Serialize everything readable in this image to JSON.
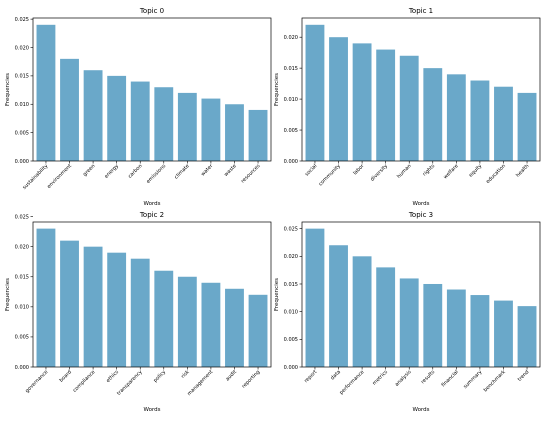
{
  "colors": {
    "bar": "#6aa8c9",
    "axis": "#000000",
    "background": "#ffffff"
  },
  "chart_data": [
    {
      "type": "bar",
      "title": "Topic 0",
      "xlabel": "Words",
      "ylabel": "Frequencies",
      "ylim": [
        0,
        0.0252
      ],
      "yticks": [
        "0.000",
        "0.005",
        "0.010",
        "0.015",
        "0.020",
        "0.025"
      ],
      "categories": [
        "sustainability",
        "environment",
        "green",
        "energy",
        "carbon",
        "emissions",
        "climate",
        "water",
        "waste",
        "resources"
      ],
      "values": [
        0.024,
        0.018,
        0.016,
        0.015,
        0.014,
        0.013,
        0.012,
        0.011,
        0.01,
        0.009
      ]
    },
    {
      "type": "bar",
      "title": "Topic 1",
      "xlabel": "Words",
      "ylabel": "Frequencies",
      "ylim": [
        0,
        0.0231
      ],
      "yticks": [
        "0.000",
        "0.005",
        "0.010",
        "0.015",
        "0.020"
      ],
      "categories": [
        "social",
        "community",
        "labor",
        "diversity",
        "human",
        "rights",
        "welfare",
        "equity",
        "education",
        "health"
      ],
      "values": [
        0.022,
        0.02,
        0.019,
        0.018,
        0.017,
        0.015,
        0.014,
        0.013,
        0.012,
        0.011
      ]
    },
    {
      "type": "bar",
      "title": "Topic 2",
      "xlabel": "Words",
      "ylabel": "Frequencies",
      "ylim": [
        0,
        0.0241
      ],
      "yticks": [
        "0.000",
        "0.005",
        "0.010",
        "0.015",
        "0.020",
        "0.025"
      ],
      "categories": [
        "governance",
        "board",
        "compliance",
        "ethics",
        "transparency",
        "policy",
        "risk",
        "management",
        "audit",
        "reporting"
      ],
      "values": [
        0.023,
        0.021,
        0.02,
        0.019,
        0.018,
        0.016,
        0.015,
        0.014,
        0.013,
        0.012
      ]
    },
    {
      "type": "bar",
      "title": "Topic 3",
      "xlabel": "Words",
      "ylabel": "Frequencies",
      "ylim": [
        0,
        0.0262
      ],
      "yticks": [
        "0.000",
        "0.005",
        "0.010",
        "0.015",
        "0.020",
        "0.025"
      ],
      "categories": [
        "report",
        "data",
        "performance",
        "metrics",
        "analysis",
        "results",
        "financial",
        "summary",
        "benchmark",
        "trend"
      ],
      "values": [
        0.025,
        0.022,
        0.02,
        0.018,
        0.016,
        0.015,
        0.014,
        0.013,
        0.012,
        0.011
      ]
    }
  ]
}
